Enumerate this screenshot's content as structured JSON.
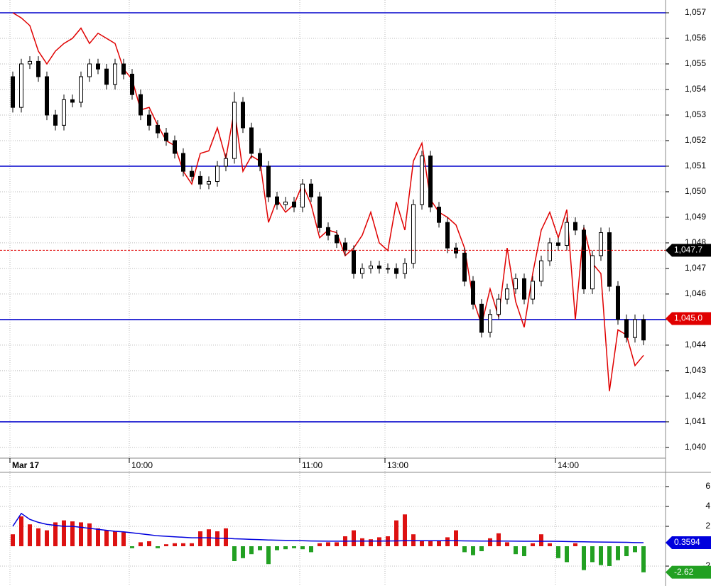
{
  "chart_data": [
    {
      "type": "candlestick",
      "categories": [
        "Mar 17",
        null,
        null,
        null,
        null,
        null,
        null,
        null,
        null,
        null,
        null,
        null,
        null,
        null,
        "10:00",
        null,
        null,
        null,
        null,
        null,
        null,
        null,
        null,
        null,
        null,
        null,
        null,
        null,
        null,
        null,
        null,
        null,
        null,
        null,
        "11:00",
        null,
        null,
        null,
        null,
        null,
        null,
        null,
        null,
        null,
        "13:00",
        null,
        null,
        null,
        null,
        null,
        null,
        null,
        null,
        null,
        null,
        null,
        null,
        null,
        null,
        null,
        null,
        null,
        null,
        null,
        "14:00",
        null,
        null,
        null,
        null,
        null,
        null,
        null,
        null,
        null,
        null
      ],
      "ohlc": {
        "open": [
          1054.5,
          1053.3,
          1055,
          1055.1,
          1054.5,
          1053,
          1052.6,
          1053.6,
          1053.5,
          1054.5,
          1055,
          1054.8,
          1054.2,
          1055,
          1054.6,
          1053.8,
          1053,
          1052.6,
          1052.3,
          1052,
          1051.5,
          1050.8,
          1050.6,
          1050.3,
          1050.4,
          1051,
          1051.3,
          1053.5,
          1052.5,
          1051.5,
          1051,
          1049.8,
          1049.5,
          1049.6,
          1049.4,
          1050.3,
          1049.8,
          1048.6,
          1048.3,
          1048,
          1047.7,
          1046.8,
          1047,
          1047.1,
          1047,
          1047,
          1046.8,
          1047.2,
          1049.5,
          1051.4,
          1049.4,
          1048.8,
          1047.8,
          1047.6,
          1046.5,
          1045.6,
          1044.5,
          1045.2,
          1045.8,
          1046.2,
          1046.6,
          1045.8,
          1046.5,
          1047.3,
          1048,
          1047.9,
          1048.8,
          1048.5,
          1046.2,
          1047.5,
          1048.4,
          1046.3,
          1045,
          1044.3,
          1045
        ],
        "high": [
          1054.7,
          1055.2,
          1055.3,
          1055.3,
          1054.7,
          1053.2,
          1053.8,
          1053.8,
          1054.7,
          1055.2,
          1055.2,
          1055,
          1055.2,
          1055.2,
          1054.8,
          1054,
          1053.2,
          1052.8,
          1052.5,
          1052.2,
          1051.7,
          1051,
          1050.8,
          1050.6,
          1051.2,
          1051.5,
          1053.9,
          1053.7,
          1052.7,
          1051.7,
          1051.2,
          1050,
          1049.8,
          1049.8,
          1050.5,
          1050.5,
          1050,
          1048.8,
          1048.5,
          1048.2,
          1047.9,
          1047.2,
          1047.3,
          1047.3,
          1047.2,
          1047.2,
          1047.4,
          1049.7,
          1051.6,
          1051.6,
          1049.6,
          1049,
          1048,
          1047.8,
          1046.7,
          1045.8,
          1045.4,
          1046,
          1046.4,
          1046.8,
          1046.8,
          1046.7,
          1047.5,
          1048.2,
          1048.2,
          1049,
          1049,
          1048.7,
          1047.7,
          1048.6,
          1048.6,
          1046.5,
          1045.2,
          1045.2,
          1045.2
        ],
        "low": [
          1053.1,
          1053.1,
          1054.8,
          1054.3,
          1052.8,
          1052.4,
          1052.4,
          1053.3,
          1053.3,
          1054.3,
          1054.6,
          1054,
          1054,
          1054.4,
          1053.6,
          1052.8,
          1052.4,
          1052.1,
          1051.8,
          1051.3,
          1050.6,
          1050.4,
          1050.1,
          1050.1,
          1050.2,
          1050.8,
          1051.1,
          1052.3,
          1051.3,
          1050.8,
          1049.6,
          1049.3,
          1049.3,
          1049.2,
          1049.2,
          1049.6,
          1048.4,
          1048.1,
          1047.8,
          1047.5,
          1046.6,
          1046.6,
          1046.8,
          1046.8,
          1046.8,
          1046.6,
          1046.6,
          1047,
          1049.3,
          1049.2,
          1048.6,
          1047.6,
          1047.4,
          1046.3,
          1045.4,
          1044.3,
          1044.3,
          1045,
          1045.6,
          1046,
          1045.6,
          1045.6,
          1046.3,
          1047.1,
          1047.7,
          1047.7,
          1048.3,
          1046,
          1046,
          1047.3,
          1046.1,
          1044.8,
          1044.1,
          1044.1,
          1044
        ],
        "close": [
          1053.3,
          1055,
          1055.1,
          1054.5,
          1053,
          1052.6,
          1053.6,
          1053.5,
          1054.5,
          1055,
          1054.8,
          1054.2,
          1055,
          1054.6,
          1053.8,
          1053,
          1052.6,
          1052.3,
          1052,
          1051.5,
          1050.8,
          1050.6,
          1050.3,
          1050.4,
          1051,
          1051.3,
          1053.5,
          1052.5,
          1051.5,
          1051,
          1049.8,
          1049.5,
          1049.6,
          1049.4,
          1050.3,
          1049.8,
          1048.6,
          1048.3,
          1048,
          1047.7,
          1046.8,
          1047,
          1047.1,
          1047,
          1047,
          1046.8,
          1047.2,
          1049.5,
          1051.4,
          1049.4,
          1048.8,
          1047.8,
          1047.6,
          1046.5,
          1045.6,
          1044.5,
          1045.2,
          1045.8,
          1046.2,
          1046.6,
          1045.8,
          1046.5,
          1047.3,
          1048,
          1047.9,
          1048.8,
          1048.5,
          1046.2,
          1047.5,
          1048.4,
          1046.3,
          1045,
          1044.3,
          1045,
          1044.2
        ]
      },
      "lines": [
        {
          "color": "#e00000",
          "values": [
            1057,
            1056.8,
            1056.5,
            1055.5,
            1055,
            1055.5,
            1055.8,
            1056,
            1056.4,
            1055.8,
            1056.2,
            1056,
            1055.8,
            1054.8,
            1054.4,
            1053.2,
            1053.3,
            1052.6,
            1052,
            1051.8,
            1050.8,
            1050.3,
            1051.5,
            1051.6,
            1052.5,
            1051.3,
            1053.2,
            1050.8,
            1051.4,
            1051.2,
            1048.8,
            1049.7,
            1049.2,
            1049.5,
            1050.3,
            1049.5,
            1048.2,
            1048.5,
            1048.4,
            1047.5,
            1047.8,
            1048.3,
            1049.2,
            1048,
            1047.7,
            1049.6,
            1048.5,
            1051.2,
            1051.9,
            1049.7,
            1049.2,
            1049,
            1048.7,
            1047.8,
            1045.8,
            1044.8,
            1046.2,
            1045.1,
            1047.8,
            1045.7,
            1044.7,
            1046.8,
            1048.5,
            1049.2,
            1048.2,
            1049.3,
            1045,
            1048.6,
            1047.2,
            1046.8,
            1042.2,
            1044.6,
            1044.4,
            1043.2,
            1043.6
          ]
        }
      ],
      "hlines": {
        "color": "#0000cc",
        "values": [
          1057,
          1051,
          1045,
          1041
        ]
      },
      "ylim": [
        1039.58,
        1057.5
      ],
      "yticks": [
        {
          "value": 1040,
          "label": "1,040"
        },
        {
          "value": 1041,
          "label": "1,041"
        },
        {
          "value": 1042,
          "label": "1,042"
        },
        {
          "value": 1043,
          "label": "1,043"
        },
        {
          "value": 1044,
          "label": "1,044"
        },
        {
          "value": 1045,
          "label": "1,045"
        },
        {
          "value": 1046,
          "label": "1,046"
        },
        {
          "value": 1047,
          "label": "1,047"
        },
        {
          "value": 1048,
          "label": "1,048"
        },
        {
          "value": 1049,
          "label": "1,049"
        },
        {
          "value": 1050,
          "label": "1,050"
        },
        {
          "value": 1051,
          "label": "1,051"
        },
        {
          "value": 1052,
          "label": "1,052"
        },
        {
          "value": 1053,
          "label": "1,053"
        },
        {
          "value": 1054,
          "label": "1,054"
        },
        {
          "value": 1055,
          "label": "1,055"
        },
        {
          "value": 1056,
          "label": "1,056"
        },
        {
          "value": 1057,
          "label": "1,057"
        }
      ],
      "grid": true,
      "markers": [
        {
          "value": 1047.71,
          "label": "1,047.7",
          "color": "#000000",
          "line_color": "#e00000"
        },
        {
          "value": 1045.04,
          "label": "1,045.0",
          "color": "#e00000"
        }
      ]
    },
    {
      "type": "histogram",
      "values": [
        1.2,
        3.0,
        2.2,
        1.8,
        1.6,
        2.4,
        2.6,
        2.5,
        2.4,
        2.3,
        1.8,
        1.6,
        1.5,
        1.4,
        -0.2,
        0.4,
        0.5,
        -0.2,
        0.2,
        0.3,
        0.3,
        0.3,
        1.5,
        1.7,
        1.5,
        1.8,
        -1.5,
        -1.2,
        -0.8,
        -0.4,
        -1.8,
        -0.4,
        -0.3,
        -0.2,
        -0.3,
        -0.6,
        0.3,
        0.4,
        0.4,
        1.0,
        1.6,
        0.8,
        0.7,
        0.9,
        1.0,
        2.6,
        3.2,
        1.2,
        0.6,
        0.5,
        0.6,
        0.9,
        1.6,
        -0.6,
        -0.9,
        -0.5,
        0.8,
        1.3,
        0.4,
        -0.8,
        -1.0,
        0.3,
        1.2,
        0.3,
        -1.2,
        -1.6,
        0.3,
        -2.4,
        -1.6,
        -1.9,
        -2.0,
        -1.4,
        -1.0,
        -0.6,
        -2.62
      ],
      "up_color": "#dd1111",
      "down_color": "#22a022",
      "lines": [
        {
          "color": "#0000dd",
          "values": [
            2.0,
            3.3,
            2.7,
            2.4,
            2.2,
            2.1,
            2.0,
            2.0,
            1.9,
            1.8,
            1.7,
            1.6,
            1.5,
            1.45,
            1.35,
            1.25,
            1.15,
            1.05,
            1.0,
            0.95,
            0.9,
            0.85,
            0.85,
            0.85,
            0.8,
            0.8,
            0.75,
            0.72,
            0.69,
            0.66,
            0.63,
            0.61,
            0.59,
            0.57,
            0.55,
            0.53,
            0.52,
            0.51,
            0.51,
            0.51,
            0.52,
            0.52,
            0.52,
            0.52,
            0.53,
            0.54,
            0.55,
            0.55,
            0.55,
            0.55,
            0.55,
            0.55,
            0.55,
            0.54,
            0.53,
            0.52,
            0.52,
            0.52,
            0.52,
            0.51,
            0.5,
            0.5,
            0.5,
            0.5,
            0.49,
            0.47,
            0.46,
            0.45,
            0.43,
            0.42,
            0.41,
            0.4,
            0.39,
            0.37,
            0.36
          ]
        }
      ],
      "ylim": [
        -4,
        7.43
      ],
      "yticks": [
        -2,
        2,
        4,
        6
      ],
      "grid": true,
      "markers": [
        {
          "value": 0.35942,
          "label": "0.3594",
          "color": "#0000dd"
        },
        {
          "value": -2.62,
          "label": "-2.62",
          "color": "#22a022"
        }
      ]
    }
  ]
}
